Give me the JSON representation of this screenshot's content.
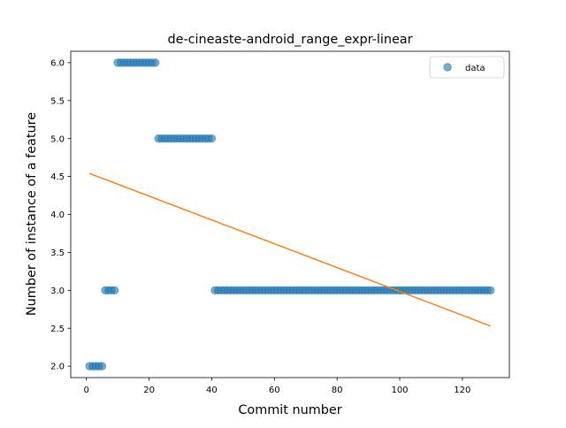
{
  "chart_data": {
    "type": "scatter",
    "title": "de-cineaste-android_range_expr-linear",
    "xlabel": "Commit number",
    "ylabel": "Number of instance of a feature",
    "xlim": [
      -5,
      135
    ],
    "ylim": [
      1.85,
      6.15
    ],
    "xticks": [
      0,
      20,
      40,
      60,
      80,
      100,
      120
    ],
    "yticks": [
      2.0,
      2.5,
      3.0,
      3.5,
      4.0,
      4.5,
      5.0,
      5.5,
      6.0
    ],
    "grid": false,
    "legend_position": "top-right",
    "series": [
      {
        "name": "data",
        "kind": "scatter",
        "color": "#1f77b4",
        "points": [
          [
            1,
            2
          ],
          [
            2,
            2
          ],
          [
            3,
            2
          ],
          [
            4,
            2
          ],
          [
            5,
            2
          ],
          [
            6,
            3
          ],
          [
            7,
            3
          ],
          [
            8,
            3
          ],
          [
            9,
            3
          ],
          [
            10,
            6
          ],
          [
            11,
            6
          ],
          [
            12,
            6
          ],
          [
            13,
            6
          ],
          [
            14,
            6
          ],
          [
            15,
            6
          ],
          [
            16,
            6
          ],
          [
            17,
            6
          ],
          [
            18,
            6
          ],
          [
            19,
            6
          ],
          [
            20,
            6
          ],
          [
            21,
            6
          ],
          [
            22,
            6
          ],
          [
            23,
            5
          ],
          [
            24,
            5
          ],
          [
            25,
            5
          ],
          [
            26,
            5
          ],
          [
            27,
            5
          ],
          [
            28,
            5
          ],
          [
            29,
            5
          ],
          [
            30,
            5
          ],
          [
            31,
            5
          ],
          [
            32,
            5
          ],
          [
            33,
            5
          ],
          [
            34,
            5
          ],
          [
            35,
            5
          ],
          [
            36,
            5
          ],
          [
            37,
            5
          ],
          [
            38,
            5
          ],
          [
            39,
            5
          ],
          [
            40,
            5
          ],
          [
            41,
            3
          ],
          [
            42,
            3
          ],
          [
            43,
            3
          ],
          [
            44,
            3
          ],
          [
            45,
            3
          ],
          [
            46,
            3
          ],
          [
            47,
            3
          ],
          [
            48,
            3
          ],
          [
            49,
            3
          ],
          [
            50,
            3
          ],
          [
            51,
            3
          ],
          [
            52,
            3
          ],
          [
            53,
            3
          ],
          [
            54,
            3
          ],
          [
            55,
            3
          ],
          [
            56,
            3
          ],
          [
            57,
            3
          ],
          [
            58,
            3
          ],
          [
            59,
            3
          ],
          [
            60,
            3
          ],
          [
            61,
            3
          ],
          [
            62,
            3
          ],
          [
            63,
            3
          ],
          [
            64,
            3
          ],
          [
            65,
            3
          ],
          [
            66,
            3
          ],
          [
            67,
            3
          ],
          [
            68,
            3
          ],
          [
            69,
            3
          ],
          [
            70,
            3
          ],
          [
            71,
            3
          ],
          [
            72,
            3
          ],
          [
            73,
            3
          ],
          [
            74,
            3
          ],
          [
            75,
            3
          ],
          [
            76,
            3
          ],
          [
            77,
            3
          ],
          [
            78,
            3
          ],
          [
            79,
            3
          ],
          [
            80,
            3
          ],
          [
            81,
            3
          ],
          [
            82,
            3
          ],
          [
            83,
            3
          ],
          [
            84,
            3
          ],
          [
            85,
            3
          ],
          [
            86,
            3
          ],
          [
            87,
            3
          ],
          [
            88,
            3
          ],
          [
            89,
            3
          ],
          [
            90,
            3
          ],
          [
            91,
            3
          ],
          [
            92,
            3
          ],
          [
            93,
            3
          ],
          [
            94,
            3
          ],
          [
            95,
            3
          ],
          [
            96,
            3
          ],
          [
            97,
            3
          ],
          [
            98,
            3
          ],
          [
            99,
            3
          ],
          [
            100,
            3
          ],
          [
            101,
            3
          ],
          [
            102,
            3
          ],
          [
            103,
            3
          ],
          [
            104,
            3
          ],
          [
            105,
            3
          ],
          [
            106,
            3
          ],
          [
            107,
            3
          ],
          [
            108,
            3
          ],
          [
            109,
            3
          ],
          [
            110,
            3
          ],
          [
            111,
            3
          ],
          [
            112,
            3
          ],
          [
            113,
            3
          ],
          [
            114,
            3
          ],
          [
            115,
            3
          ],
          [
            116,
            3
          ],
          [
            117,
            3
          ],
          [
            118,
            3
          ],
          [
            119,
            3
          ],
          [
            120,
            3
          ],
          [
            121,
            3
          ],
          [
            122,
            3
          ],
          [
            123,
            3
          ],
          [
            124,
            3
          ],
          [
            125,
            3
          ],
          [
            126,
            3
          ],
          [
            127,
            3
          ],
          [
            128,
            3
          ],
          [
            129,
            3
          ]
        ]
      },
      {
        "kind": "line",
        "color": "#ff7f0e",
        "points": [
          [
            1,
            4.54
          ],
          [
            129,
            2.53
          ]
        ]
      }
    ]
  }
}
